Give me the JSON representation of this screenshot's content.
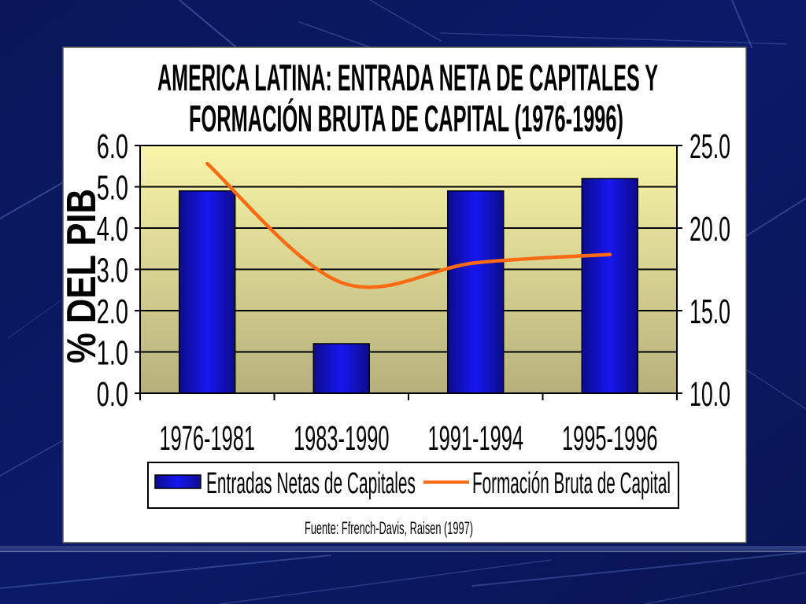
{
  "slide": {
    "background_color": "#0b1a68",
    "panel_color": "#ffffff"
  },
  "chart_data": {
    "type": "bar",
    "title": [
      "AMERICA LATINA: ENTRADA NETA DE CAPITALES Y",
      "FORMACIÓN BRUTA DE CAPITAL (1976-1996)"
    ],
    "ylabel": "% DEL PIB",
    "categories": [
      "1976-1981",
      "1983-1990",
      "1991-1994",
      "1995-1996"
    ],
    "ylim": [
      0,
      6
    ],
    "yticks": [
      "0.0",
      "1.0",
      "2.0",
      "3.0",
      "4.0",
      "5.0",
      "6.0"
    ],
    "y2lim": [
      10,
      25
    ],
    "y2ticks": [
      "10.0",
      "15.0",
      "20.0",
      "25.0"
    ],
    "series": [
      {
        "name": "Entradas Netas de Capitales",
        "type": "bar",
        "axis": "left",
        "values": [
          4.9,
          1.2,
          4.9,
          5.2
        ],
        "color": "#1414e0"
      },
      {
        "name": "Formación Bruta de Capital",
        "type": "line",
        "axis": "right",
        "smooth": true,
        "values": [
          23.9,
          16.7,
          17.9,
          18.4
        ],
        "color": "#ff6a13"
      }
    ],
    "grid": true,
    "legend": "bottom",
    "plot_background": {
      "top": "#f8f6a8",
      "bottom": "#b6b07c"
    },
    "source_note": "Fuente: Ffrench-Davis, Raisen (1997)"
  }
}
